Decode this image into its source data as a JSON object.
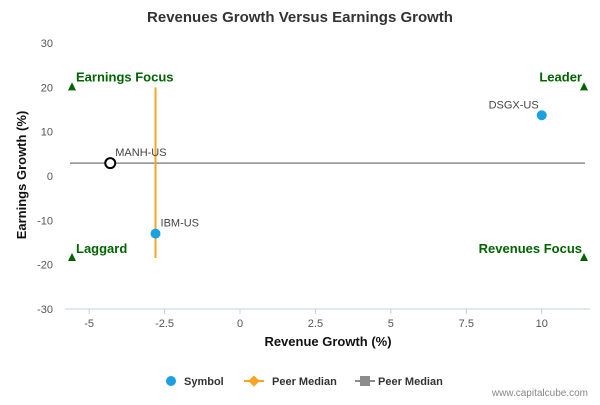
{
  "chart_data": {
    "type": "scatter",
    "title": "Revenues Growth Versus Earnings Growth",
    "xlabel": "Revenue Growth (%)",
    "ylabel": "Earnings Growth (%)",
    "xlim": [
      -5.8,
      11.6
    ],
    "ylim": [
      -30,
      30
    ],
    "x_ticks": [
      -5,
      -2.5,
      0,
      2.5,
      5,
      7.5,
      10
    ],
    "x_tick_labels": [
      "-5",
      "-2.5",
      "0",
      "2.5",
      "5",
      "7.5",
      "10"
    ],
    "y_ticks": [
      30,
      20,
      10,
      0,
      -10,
      -20,
      -30
    ],
    "y_tick_labels": [
      "30",
      "20",
      "10",
      "0",
      "-10",
      "-20",
      "-30"
    ],
    "grid": false,
    "points": [
      {
        "label": "DSGX-US",
        "x": 10.0,
        "y": 13.7,
        "style": "filled",
        "color": "#1ba1e2"
      },
      {
        "label": "MANH-US",
        "x": -4.3,
        "y": 2.9,
        "style": "ring",
        "color": "#000000"
      },
      {
        "label": "IBM-US",
        "x": -2.8,
        "y": -13.0,
        "style": "filled",
        "color": "#1ba1e2"
      }
    ],
    "peer_median_revenue_growth": -2.8,
    "peer_median_earnings_growth": 2.9,
    "quadrants": {
      "top_left": "Earnings Focus",
      "top_right": "Leader",
      "bottom_left": "Laggard",
      "bottom_right": "Revenues Focus"
    },
    "quadrant_marker_y": [
      20,
      -18.5
    ],
    "legend": [
      {
        "label": "Symbol",
        "color": "#1ba1e2",
        "shape": "circle"
      },
      {
        "label": "Peer Median",
        "color": "#f5a623",
        "shape": "diamond-line"
      },
      {
        "label": "Peer Median",
        "color": "#8c8c8c",
        "shape": "square-line"
      }
    ],
    "legend_position": "bottom",
    "colors": {
      "quadrant_text": "#006400",
      "peer_median_vertical": "#f5a623",
      "peer_median_horizontal": "#8c8c8c"
    }
  },
  "footer": {
    "credit": "www.capitalcube.com"
  }
}
